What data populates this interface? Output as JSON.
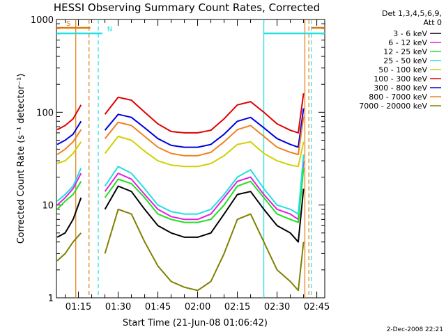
{
  "chart_data": {
    "type": "line",
    "title": "HESSI Observing Summary Count Rates, Corrected",
    "xlabel": "Start Time (21-Jun-08 01:06:42)",
    "ylabel": "Corrected Count Rate (s⁻¹ detector⁻¹)",
    "yscale": "log",
    "ylim": [
      1,
      1000
    ],
    "xlim": [
      "01:06:42",
      "02:48:00"
    ],
    "x_tick_labels": [
      "01:15",
      "01:30",
      "01:45",
      "02:00",
      "02:15",
      "02:30",
      "02:45"
    ],
    "y_tick_labels": [
      "1",
      "10",
      "100",
      "1000"
    ],
    "legend_title": [
      "Det 1,3,4,5,6,9,",
      "Att 0"
    ],
    "legend_position": "right",
    "grid": false,
    "timestamp": "2-Dec-2008 22:21",
    "flags": [
      {
        "label": "S",
        "start": "01:06:42",
        "end": "01:19:30",
        "color": "#e07a10"
      },
      {
        "label": "N",
        "start": "01:06:42",
        "end": "01:24:00",
        "color": "#20e0e0"
      }
    ],
    "vertical_lines": [
      {
        "time": "01:14:00",
        "color": "#e07a10",
        "style": "solid"
      },
      {
        "time": "01:19:00",
        "color": "#e07a10",
        "style": "dashed"
      },
      {
        "time": "01:22:30",
        "color": "#20e0e0",
        "style": "dashed"
      },
      {
        "time": "02:25:00",
        "color": "#20e0e0",
        "style": "solid"
      },
      {
        "time": "02:40:30",
        "color": "#e07a10",
        "style": "solid"
      },
      {
        "time": "02:42:00",
        "color": "#e07a10",
        "style": "dashed"
      },
      {
        "time": "02:43:00",
        "color": "#20e0e0",
        "style": "dashed"
      }
    ],
    "x": [
      "01:07",
      "01:10",
      "01:13",
      "01:16",
      "01:20",
      "01:25",
      "01:30",
      "01:35",
      "01:40",
      "01:45",
      "01:50",
      "01:55",
      "02:00",
      "02:05",
      "02:10",
      "02:15",
      "02:20",
      "02:25",
      "02:30",
      "02:35",
      "02:38",
      "02:40"
    ],
    "series": [
      {
        "name": "3 - 6 keV",
        "color": "#000000",
        "values": [
          4.5,
          5,
          7,
          12,
          null,
          9,
          16,
          14,
          9,
          6,
          5,
          4.5,
          4.5,
          5,
          8,
          13,
          14,
          9,
          6,
          5,
          4,
          15
        ]
      },
      {
        "name": "6 - 12 keV",
        "color": "#e020e0",
        "values": [
          10,
          12,
          15,
          22,
          null,
          14,
          22,
          19,
          13,
          9,
          7.5,
          7,
          7,
          8,
          12,
          18,
          20,
          13,
          9,
          8,
          7,
          30
        ]
      },
      {
        "name": "12 - 25 keV",
        "color": "#20e020",
        "values": [
          9,
          11,
          13,
          18,
          null,
          12,
          19,
          17,
          12,
          8,
          7,
          6.5,
          6.5,
          7,
          10,
          16,
          18,
          12,
          8,
          7,
          6.5,
          25
        ]
      },
      {
        "name": "25 - 50 keV",
        "color": "#20e0e0",
        "values": [
          11,
          13,
          16,
          25,
          null,
          16,
          26,
          22,
          15,
          10,
          8.5,
          8,
          8,
          9,
          13,
          20,
          24,
          15,
          10,
          9,
          8,
          35
        ]
      },
      {
        "name": "50 - 100 keV",
        "color": "#d0d000",
        "values": [
          28,
          30,
          36,
          48,
          null,
          36,
          55,
          50,
          38,
          30,
          27,
          26,
          26,
          28,
          34,
          45,
          48,
          36,
          30,
          27,
          26,
          48
        ]
      },
      {
        "name": "100 - 300 keV",
        "color": "#e00000",
        "values": [
          65,
          72,
          85,
          120,
          null,
          95,
          145,
          135,
          100,
          75,
          62,
          60,
          60,
          64,
          85,
          120,
          130,
          100,
          75,
          64,
          60,
          160
        ]
      },
      {
        "name": "300 - 800 keV",
        "color": "#0000e0",
        "values": [
          45,
          50,
          58,
          80,
          null,
          64,
          95,
          88,
          68,
          52,
          44,
          42,
          42,
          45,
          58,
          80,
          88,
          68,
          52,
          45,
          42,
          110
        ]
      },
      {
        "name": "800 - 7000 keV",
        "color": "#f08020",
        "values": [
          35,
          40,
          48,
          65,
          null,
          52,
          78,
          72,
          55,
          42,
          36,
          34,
          34,
          37,
          48,
          65,
          72,
          55,
          42,
          37,
          35,
          90
        ]
      },
      {
        "name": "7000 - 20000 keV",
        "color": "#808000",
        "values": [
          2.5,
          3,
          4,
          5,
          null,
          3,
          9,
          8,
          4,
          2.2,
          1.5,
          1.3,
          1.2,
          1.5,
          3,
          7,
          8,
          4,
          2,
          1.5,
          1.2,
          4
        ]
      }
    ]
  }
}
